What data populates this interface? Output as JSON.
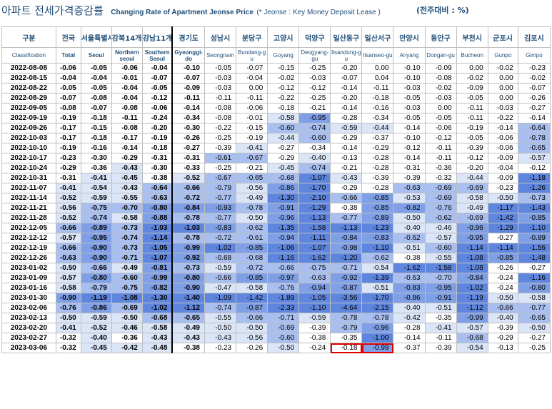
{
  "title": {
    "korean": "아파트 전세가격증감률",
    "english": "Changing Rate of Apartment Jeonse Price",
    "note": "(* Jeonse : Key Money Deposit Lease )",
    "unit": "(전주대비 : %)"
  },
  "columns": [
    {
      "ko": "구분",
      "en": "Classification"
    },
    {
      "ko": "전국",
      "en": "Total"
    },
    {
      "ko": "서울특별시",
      "en": "Seoul"
    },
    {
      "ko": "강북14개구",
      "en": "Northern seoul"
    },
    {
      "ko": "강남11개구",
      "en": "Southern Seoul"
    },
    {
      "ko": "경기도",
      "en": "Gyeonggi-do"
    },
    {
      "ko": "성남시",
      "en": "Seongnam"
    },
    {
      "ko": "분당구",
      "en": "Bundang-gu"
    },
    {
      "ko": "고양시",
      "en": "Goyang"
    },
    {
      "ko": "덕양구",
      "en": "Deogyang-gu"
    },
    {
      "ko": "일산동구",
      "en": "Ilsandong-gu"
    },
    {
      "ko": "일산서구",
      "en": "Ilsanseo-gu"
    },
    {
      "ko": "안양시",
      "en": "Anyang"
    },
    {
      "ko": "동안구",
      "en": "Dongan-gu"
    },
    {
      "ko": "부천시",
      "en": "Bucheon"
    },
    {
      "ko": "군포시",
      "en": "Gunpo"
    },
    {
      "ko": "김포시",
      "en": "Gimpo"
    }
  ],
  "header_labels": {
    "c0": "구분",
    "c1": "전국",
    "c2": "서울특별시",
    "c3": "강북14개구",
    "c4": "강남11개구",
    "c5": "경기도",
    "c6": "성남시",
    "c7": "분당구",
    "c8": "고양시",
    "c9": "덕양구",
    "c10": "일산동구",
    "c11": "일산서구",
    "c12": "안양시",
    "c13": "동안구",
    "c14": "부천시",
    "c15": "군포시",
    "c16": "김포시",
    "e0": "Classification",
    "e1": "Total",
    "e2": "Seoul",
    "e3": "Northern seoul",
    "e4": "Southern Seoul",
    "e5": "Gyeonggi-do",
    "e6": "Seongnam",
    "e7": "Bundang-gu",
    "e8": "Goyang",
    "e9": "Deogyang-gu",
    "e10": "Ilsandong-gu",
    "e11": "Ilsanseo-gu",
    "e12": "Anyang",
    "e13": "Dongan-gu",
    "e14": "Bucheon",
    "e15": "Gunpo",
    "e16": "Gimpo"
  },
  "rows": [
    {
      "date": "2022-08-08",
      "values": [
        "-0.06",
        "-0.05",
        "-0.06",
        "-0.04",
        "-0.10",
        "-0.05",
        "-0.07",
        "-0.15",
        "-0.25",
        "-0.20",
        "0.00",
        "-0.10",
        "-0.09",
        "0.00",
        "-0.02",
        "-0.23"
      ]
    },
    {
      "date": "2022-08-15",
      "values": [
        "-0.04",
        "-0.04",
        "-0.01",
        "-0.07",
        "-0.07",
        "-0.03",
        "-0.04",
        "-0.02",
        "-0.03",
        "-0.07",
        "0.04",
        "-0.10",
        "-0.08",
        "-0.02",
        "0.00",
        "-0.02"
      ]
    },
    {
      "date": "2022-08-22",
      "values": [
        "-0.05",
        "-0.05",
        "-0.04",
        "-0.05",
        "-0.09",
        "-0.03",
        "0.00",
        "-0.12",
        "-0.12",
        "-0.14",
        "-0.11",
        "-0.03",
        "-0.02",
        "-0.09",
        "0.00",
        "-0.07"
      ]
    },
    {
      "date": "2022-08-29",
      "values": [
        "-0.07",
        "-0.08",
        "-0.04",
        "-0.12",
        "-0.11",
        "-0.11",
        "-0.11",
        "-0.22",
        "-0.25",
        "-0.20",
        "-0.18",
        "-0.05",
        "-0.03",
        "-0.05",
        "0.00",
        "-0.26"
      ]
    },
    {
      "date": "2022-09-05",
      "values": [
        "-0.08",
        "-0.07",
        "-0.08",
        "-0.06",
        "-0.14",
        "-0.08",
        "-0.06",
        "-0.18",
        "-0.21",
        "-0.14",
        "-0.16",
        "-0.03",
        "0.00",
        "-0.11",
        "-0.03",
        "-0.27"
      ]
    },
    {
      "date": "2022-09-19",
      "values": [
        "-0.19",
        "-0.18",
        "-0.11",
        "-0.24",
        "-0.34",
        "-0.08",
        "-0.01",
        "-0.58",
        "-0.95",
        "-0.28",
        "-0.34",
        "-0.05",
        "-0.05",
        "-0.11",
        "-0.22",
        "-0.14"
      ]
    },
    {
      "date": "2022-09-26",
      "values": [
        "-0.17",
        "-0.15",
        "-0.08",
        "-0.20",
        "-0.30",
        "-0.22",
        "-0.15",
        "-0.60",
        "-0.74",
        "-0.59",
        "-0.44",
        "-0.14",
        "-0.06",
        "-0.19",
        "-0.14",
        "-0.64"
      ]
    },
    {
      "date": "2022-10-03",
      "values": [
        "-0.17",
        "-0.18",
        "-0.17",
        "-0.19",
        "-0.26",
        "-0.25",
        "-0.19",
        "-0.44",
        "-0.60",
        "-0.29",
        "-0.37",
        "-0.10",
        "-0.12",
        "-0.05",
        "-0.06",
        "-0.78"
      ]
    },
    {
      "date": "2022-10-10",
      "values": [
        "-0.19",
        "-0.16",
        "-0.14",
        "-0.18",
        "-0.27",
        "-0.39",
        "-0.41",
        "-0.27",
        "-0.34",
        "-0.14",
        "-0.29",
        "-0.12",
        "-0.11",
        "-0.39",
        "-0.06",
        "-0.65"
      ]
    },
    {
      "date": "2022-10-17",
      "values": [
        "-0.23",
        "-0.30",
        "-0.29",
        "-0.31",
        "-0.31",
        "-0.61",
        "-0.67",
        "-0.29",
        "-0.40",
        "-0.13",
        "-0.28",
        "-0.14",
        "-0.11",
        "-0.12",
        "-0.09",
        "-0.57"
      ]
    },
    {
      "date": "2022-10-24",
      "values": [
        "-0.29",
        "-0.36",
        "-0.43",
        "-0.30",
        "-0.33",
        "-0.25",
        "-0.21",
        "-0.45",
        "-0.74",
        "-0.21",
        "-0.28",
        "-0.31",
        "-0.36",
        "-0.20",
        "-0.04",
        "-0.12"
      ]
    },
    {
      "date": "2022-10-31",
      "values": [
        "-0.31",
        "-0.41",
        "-0.45",
        "-0.38",
        "-0.52",
        "-0.67",
        "-0.65",
        "-0.68",
        "-1.07",
        "-0.43",
        "-0.39",
        "-0.39",
        "-0.32",
        "-0.44",
        "-0.09",
        "-1.18"
      ]
    },
    {
      "date": "2022-11-07",
      "values": [
        "-0.41",
        "-0.54",
        "-0.43",
        "-0.64",
        "-0.66",
        "-0.79",
        "-0.56",
        "-0.86",
        "-1.70",
        "-0.29",
        "-0.28",
        "-0.63",
        "-0.69",
        "-0.69",
        "-0.23",
        "-1.26"
      ]
    },
    {
      "date": "2022-11-14",
      "values": [
        "-0.52",
        "-0.59",
        "-0.55",
        "-0.63",
        "-0.72",
        "-0.77",
        "-0.49",
        "-1.30",
        "-2.10",
        "-0.66",
        "-0.85",
        "-0.53",
        "-0.69",
        "-0.58",
        "-0.50",
        "-0.73"
      ]
    },
    {
      "date": "2022-11-21",
      "values": [
        "-0.56",
        "-0.75",
        "-0.70",
        "-0.80",
        "-0.84",
        "-0.93",
        "-0.78",
        "-0.91",
        "-1.29",
        "-0.38",
        "-0.85",
        "-0.82",
        "-0.76",
        "-0.49",
        "-1.17",
        "-1.43"
      ]
    },
    {
      "date": "2022-11-28",
      "values": [
        "-0.52",
        "-0.74",
        "-0.58",
        "-0.88",
        "-0.78",
        "-0.77",
        "-0.50",
        "-0.96",
        "-1.13",
        "-0.77",
        "-0.89",
        "-0.50",
        "-0.62",
        "-0.69",
        "-1.42",
        "-0.85"
      ]
    },
    {
      "date": "2022-12-05",
      "values": [
        "-0.66",
        "-0.89",
        "-0.73",
        "-1.03",
        "-1.03",
        "-0.83",
        "-0.62",
        "-1.35",
        "-1.58",
        "-1.13",
        "-1.23",
        "-0.40",
        "-0.46",
        "-0.96",
        "-1.29",
        "-1.10"
      ]
    },
    {
      "date": "2022-12-12",
      "values": [
        "-0.57",
        "-0.95",
        "-0.74",
        "-1.14",
        "-0.78",
        "-0.72",
        "-0.61",
        "-0.94",
        "-1.11",
        "-0.84",
        "-0.83",
        "-0.62",
        "-0.57",
        "-0.95",
        "-0.27",
        "-0.89"
      ]
    },
    {
      "date": "2022-12-19",
      "values": [
        "-0.66",
        "-0.90",
        "-0.73",
        "-1.05",
        "-0.99",
        "-1.02",
        "-0.85",
        "-1.06",
        "-1.07",
        "-0.98",
        "-1.10",
        "-0.51",
        "-0.60",
        "-1.14",
        "-1.14",
        "-1.56"
      ]
    },
    {
      "date": "2022-12-26",
      "values": [
        "-0.63",
        "-0.90",
        "-0.71",
        "-1.07",
        "-0.92",
        "-0.68",
        "-0.68",
        "-1.16",
        "-1.62",
        "-1.20",
        "-0.62",
        "-0.38",
        "-0.55",
        "-1.08",
        "-0.85",
        "-1.48"
      ]
    },
    {
      "date": "2023-01-02",
      "values": [
        "-0.50",
        "-0.66",
        "-0.49",
        "-0.81",
        "-0.73",
        "-0.59",
        "-0.72",
        "-0.66",
        "-0.75",
        "-0.71",
        "-0.54",
        "-1.62",
        "-1.58",
        "-1.08",
        "-0.26",
        "-0.27"
      ]
    },
    {
      "date": "2023-01-09",
      "values": [
        "-0.57",
        "-0.80",
        "-0.60",
        "-0.99",
        "-0.80",
        "-0.66",
        "-0.85",
        "-0.97",
        "-0.63",
        "-0.92",
        "-1.39",
        "-0.63",
        "-0.70",
        "-0.84",
        "-0.24",
        "-1.16"
      ]
    },
    {
      "date": "2023-01-16",
      "values": [
        "-0.58",
        "-0.79",
        "-0.75",
        "-0.82",
        "-0.90",
        "-0.47",
        "-0.58",
        "-0.76",
        "-0.94",
        "-0.87",
        "-0.51",
        "-0.83",
        "-0.95",
        "-1.02",
        "-0.24",
        "-0.80"
      ]
    },
    {
      "date": "2023-01-30",
      "values": [
        "-0.90",
        "-1.19",
        "-1.08",
        "-1.30",
        "-1.40",
        "-1.09",
        "-1.42",
        "-1.89",
        "-1.05",
        "-3.56",
        "-1.70",
        "-0.86",
        "-0.91",
        "-1.19",
        "-0.50",
        "-0.58"
      ]
    },
    {
      "date": "2023-02-06",
      "values": [
        "-0.76",
        "-0.86",
        "-0.69",
        "-1.02",
        "-1.12",
        "-0.74",
        "-0.87",
        "-2.33",
        "-1.10",
        "-4.64",
        "-2.15",
        "-0.40",
        "-0.51",
        "-1.12",
        "-0.66",
        "-0.77"
      ]
    },
    {
      "date": "2023-02-13",
      "values": [
        "-0.50",
        "-0.59",
        "-0.50",
        "-0.68",
        "-0.65",
        "-0.55",
        "-0.66",
        "-0.71",
        "-0.59",
        "-0.78",
        "-0.78",
        "-0.42",
        "-0.35",
        "-0.99",
        "-0.40",
        "-0.65"
      ]
    },
    {
      "date": "2023-02-20",
      "values": [
        "-0.41",
        "-0.52",
        "-0.46",
        "-0.58",
        "-0.49",
        "-0.50",
        "-0.50",
        "-0.69",
        "-0.39",
        "-0.79",
        "-0.96",
        "-0.28",
        "-0.41",
        "-0.57",
        "-0.39",
        "-0.50"
      ]
    },
    {
      "date": "2023-02-27",
      "values": [
        "-0.32",
        "-0.40",
        "-0.36",
        "-0.43",
        "-0.43",
        "-0.43",
        "-0.56",
        "-0.60",
        "-0.38",
        "-0.35",
        "-1.00",
        "-0.14",
        "-0.11",
        "-0.68",
        "-0.29",
        "-0.27"
      ]
    },
    {
      "date": "2023-03-06",
      "values": [
        "-0.32",
        "-0.45",
        "-0.42",
        "-0.48",
        "-0.38",
        "-0.23",
        "-0.26",
        "-0.50",
        "-0.24",
        "-0.18",
        "-0.99",
        "-0.37",
        "-0.39",
        "-0.54",
        "-0.13",
        "-0.25"
      ]
    }
  ],
  "highlighted_cells": [
    {
      "row": 28,
      "col": 10
    },
    {
      "row": 28,
      "col": 11
    }
  ],
  "colors": {
    "header_text": "#1f4e79",
    "shade_light": "#dbe5f8",
    "shade_mid": "#a9bfef",
    "shade_strong": "#7f9fe6",
    "shade_darkest": "#5f86de",
    "highlight_border": "#e00000"
  }
}
